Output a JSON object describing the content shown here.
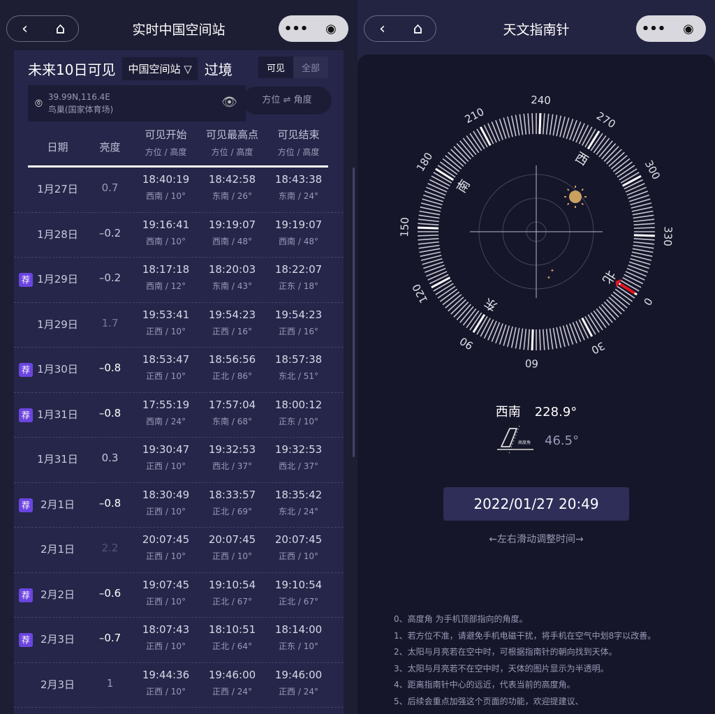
{
  "left": {
    "header": {
      "back_icon": "chevron-left-icon",
      "home_icon": "home-icon",
      "title": "实时中国空间站",
      "more_icon": "more-dots-icon",
      "close_icon": "target-circle-icon"
    },
    "heading": {
      "prefix": "未来10日可见",
      "satellite": "中国空间站 ▽",
      "suffix": "过境"
    },
    "filter": {
      "visible": "可见",
      "all": "全部",
      "selected": "可见"
    },
    "location": {
      "coords": "39.99N,116.4E",
      "name": "鸟巢(国家体育场)"
    },
    "swap_label": "方位 ⇌ 角度",
    "columns": {
      "date": "日期",
      "brightness": "亮度",
      "start": "可见开始",
      "peak": "可见最高点",
      "end": "可见结束",
      "sub": "方位 / 高度"
    },
    "rec_label": "荐",
    "rows": [
      {
        "rec": false,
        "date": "1月27日",
        "brightness": "0.7",
        "start": "18:40:19",
        "start_dir": "西南 / 10°",
        "peak": "18:42:58",
        "peak_dir": "东南 / 26°",
        "end": "18:43:38",
        "end_dir": "东南 / 24°"
      },
      {
        "rec": false,
        "date": "1月28日",
        "brightness": "–0.2",
        "start": "19:16:41",
        "start_dir": "西南 / 10°",
        "peak": "19:19:07",
        "peak_dir": "西南 / 48°",
        "end": "19:19:07",
        "end_dir": "西南 / 48°"
      },
      {
        "rec": true,
        "date": "1月29日",
        "brightness": "–0.2",
        "start": "18:17:18",
        "start_dir": "西南 / 12°",
        "peak": "18:20:03",
        "peak_dir": "东南 / 43°",
        "end": "18:22:07",
        "end_dir": "正东 / 18°"
      },
      {
        "rec": false,
        "date": "1月29日",
        "brightness": "1.7",
        "start": "19:53:41",
        "start_dir": "正西 / 10°",
        "peak": "19:54:23",
        "peak_dir": "正西 / 16°",
        "end": "19:54:23",
        "end_dir": "正西 / 16°"
      },
      {
        "rec": true,
        "date": "1月30日",
        "brightness": "–0.8",
        "start": "18:53:47",
        "start_dir": "正西 / 10°",
        "peak": "18:56:56",
        "peak_dir": "正北 / 86°",
        "end": "18:57:38",
        "end_dir": "东北 / 51°"
      },
      {
        "rec": true,
        "date": "1月31日",
        "brightness": "–0.8",
        "start": "17:55:19",
        "start_dir": "西南 / 24°",
        "peak": "17:57:04",
        "peak_dir": "东南 / 68°",
        "end": "18:00:12",
        "end_dir": "正东 / 10°"
      },
      {
        "rec": false,
        "date": "1月31日",
        "brightness": "0.3",
        "start": "19:30:47",
        "start_dir": "正西 / 10°",
        "peak": "19:32:53",
        "peak_dir": "西北 / 37°",
        "end": "19:32:53",
        "end_dir": "西北 / 37°"
      },
      {
        "rec": true,
        "date": "2月1日",
        "brightness": "–0.8",
        "start": "18:30:49",
        "start_dir": "正西 / 10°",
        "peak": "18:33:57",
        "peak_dir": "正北 / 69°",
        "end": "18:35:42",
        "end_dir": "东北 / 24°"
      },
      {
        "rec": false,
        "date": "2月1日",
        "brightness": "2.2",
        "start": "20:07:45",
        "start_dir": "正西 / 10°",
        "peak": "20:07:45",
        "peak_dir": "正西 / 10°",
        "end": "20:07:45",
        "end_dir": "正西 / 10°"
      },
      {
        "rec": true,
        "date": "2月2日",
        "brightness": "–0.6",
        "start": "19:07:45",
        "start_dir": "正西 / 10°",
        "peak": "19:10:54",
        "peak_dir": "正北 / 67°",
        "end": "19:10:54",
        "end_dir": "正北 / 67°"
      },
      {
        "rec": true,
        "date": "2月3日",
        "brightness": "–0.7",
        "start": "18:07:43",
        "start_dir": "正西 / 10°",
        "peak": "18:10:51",
        "peak_dir": "正北 / 64°",
        "end": "18:14:00",
        "end_dir": "正东 / 10°"
      },
      {
        "rec": false,
        "date": "2月3日",
        "brightness": "1",
        "start": "19:44:36",
        "start_dir": "正西 / 10°",
        "peak": "19:46:00",
        "peak_dir": "正西 / 24°",
        "end": "19:46:00",
        "end_dir": "正西 / 24°"
      }
    ]
  },
  "right": {
    "header": {
      "back_icon": "chevron-left-icon",
      "home_icon": "home-icon",
      "title": "天文指南针",
      "more_icon": "more-dots-icon",
      "close_icon": "target-circle-icon"
    },
    "compass": {
      "heading_deg": 228.9,
      "degree_labels": [
        "0",
        "30",
        "60",
        "90",
        "120",
        "150",
        "180",
        "210",
        "240",
        "270",
        "300",
        "330"
      ],
      "cardinals": {
        "north": "北",
        "east": "东",
        "south": "南",
        "west": "西"
      },
      "needle_color": "#e8141e",
      "sun_color": "#c9a060",
      "moon_color": "#c9a060"
    },
    "direction": "西南",
    "azimuth": "228.9°",
    "altitude_icon_label": "高度角",
    "altitude": "46.5°",
    "datetime": "2022/01/27 20:49",
    "hint": "←左右滑动调整时间→",
    "notes": [
      "0、高度角 为手机顶部指向的角度。",
      "1、若方位不准，请避免手机电磁干扰，将手机在空气中划8字以改善。",
      "2、太阳与月亮若在空中时，可根据指南针的朝向找到天体。",
      "3、太阳与月亮若不在空中时，天体的图片显示为半透明。",
      "4、距离指南针中心的远近，代表当前的高度角。",
      "5、后续会重点加强这个页面的功能，欢迎提建议、"
    ]
  }
}
